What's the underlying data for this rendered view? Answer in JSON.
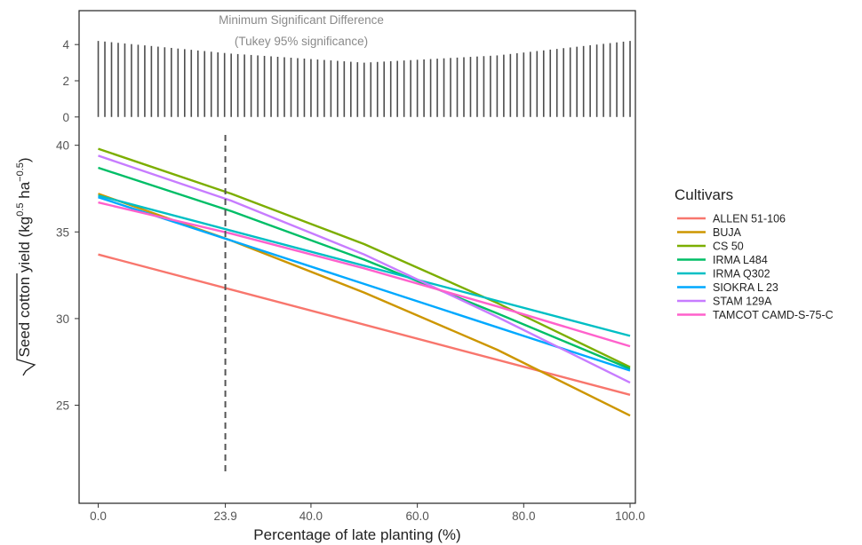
{
  "chart_data": {
    "type": "line",
    "xlabel": "Percentage of late planting (%)",
    "ylabel": {
      "main": "Seed cotton yield",
      "unit_open": "(kg",
      "exp1": "0.5",
      "unit_mid": " ha",
      "exp2": "−0.5",
      "unit_close": ")"
    },
    "xlim": [
      -3.6,
      101
    ],
    "x_ticks": [
      {
        "value": 0,
        "label": "0.0"
      },
      {
        "value": 23.9,
        "label": "23.9"
      },
      {
        "value": 40,
        "label": "40.0"
      },
      {
        "value": 60,
        "label": "60.0"
      },
      {
        "value": 80,
        "label": "80.0"
      },
      {
        "value": 100,
        "label": "100.0"
      }
    ],
    "y_ticks": [
      {
        "value": 25,
        "label": "25"
      },
      {
        "value": 30,
        "label": "30"
      },
      {
        "value": 35,
        "label": "35"
      },
      {
        "value": 40,
        "label": "40"
      }
    ],
    "y_range": [
      19.7,
      40.7
    ],
    "msd_panel": {
      "title_line1": "Minimum Significant Difference",
      "title_line2": "(Tukey 95% significance)",
      "y_ticks": [
        {
          "value": 0,
          "label": "0"
        },
        {
          "value": 2,
          "label": "2"
        },
        {
          "value": 4,
          "label": "4"
        }
      ],
      "y_range": [
        -0.55,
        4.5
      ],
      "x_start": 0,
      "x_end": 100,
      "bar_count": 81,
      "curve": {
        "x": [
          0,
          25,
          50,
          75,
          100
        ],
        "y": [
          4.2,
          3.5,
          3.0,
          3.4,
          4.2
        ]
      },
      "color": "#4d4d4d"
    },
    "reference_line": {
      "x": 23.9,
      "y_from": 21.0,
      "y_to": 40.6,
      "color": "#555555"
    },
    "legend_title": "Cultivars",
    "legend_position": "right",
    "series": [
      {
        "name": "ALLEN 51-106",
        "color": "#F8766D",
        "x": [
          0,
          100
        ],
        "y": [
          33.7,
          25.6
        ]
      },
      {
        "name": "BUJA",
        "color": "#CD9600",
        "x": [
          0,
          25,
          50,
          75,
          100
        ],
        "y": [
          37.2,
          34.5,
          31.5,
          28.2,
          24.4
        ]
      },
      {
        "name": "CS 50",
        "color": "#7CAE00",
        "x": [
          0,
          25,
          50,
          75,
          100
        ],
        "y": [
          39.8,
          37.2,
          34.3,
          30.9,
          27.2
        ]
      },
      {
        "name": "IRMA L484",
        "color": "#00BE67",
        "x": [
          0,
          25,
          50,
          75,
          100
        ],
        "y": [
          38.7,
          36.2,
          33.4,
          30.3,
          27.1
        ]
      },
      {
        "name": "IRMA Q302",
        "color": "#00BFC4",
        "x": [
          0,
          100
        ],
        "y": [
          37.1,
          29.0
        ]
      },
      {
        "name": "SIOKRA L 23",
        "color": "#00A9FF",
        "x": [
          0,
          25,
          50,
          75,
          100
        ],
        "y": [
          37.0,
          34.5,
          32.0,
          29.5,
          27.0
        ]
      },
      {
        "name": "STAM 129A",
        "color": "#C77CFF",
        "x": [
          0,
          25,
          50,
          75,
          100
        ],
        "y": [
          39.4,
          36.8,
          33.7,
          30.1,
          26.3
        ]
      },
      {
        "name": "TAMCOT CAMD-S-75-C",
        "color": "#FF61CC",
        "x": [
          0,
          25,
          50,
          75,
          100
        ],
        "y": [
          36.7,
          34.9,
          32.9,
          30.7,
          28.4
        ]
      }
    ]
  }
}
